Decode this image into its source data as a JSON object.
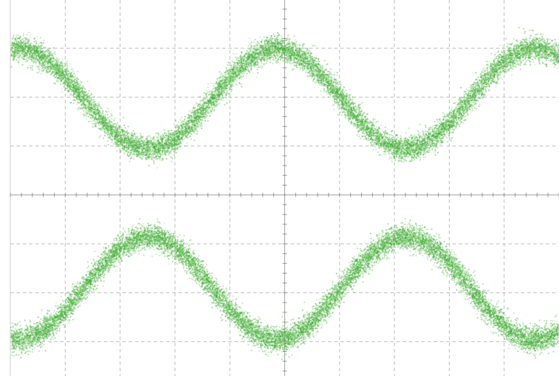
{
  "chart_data": {
    "type": "scatter",
    "title": "",
    "xlabel": "",
    "ylabel": "",
    "grid": true,
    "legend": "none",
    "grid_divisions": {
      "x": 10,
      "y": 8
    },
    "xlim": [
      0,
      10
    ],
    "ylim": [
      -4,
      4
    ],
    "unit_interval_div": 2.35,
    "phase_div": 0.15,
    "series": [
      {
        "trace": "upper-rail",
        "y_peak": 3.0,
        "y_crossing": 0.95,
        "band_spread_div": 0.25
      },
      {
        "trace": "lower-rail",
        "y_trough": -2.95,
        "y_crossing": -0.85,
        "band_spread_div": 0.25
      }
    ],
    "eye_crossings_x": [
      0.15,
      2.5,
      4.85,
      7.2,
      9.55
    ],
    "colors": {
      "trace": "#3aa632",
      "trace_light": "#7fd36b",
      "grid": "#b9b9b9",
      "background": "#ffffff"
    }
  }
}
